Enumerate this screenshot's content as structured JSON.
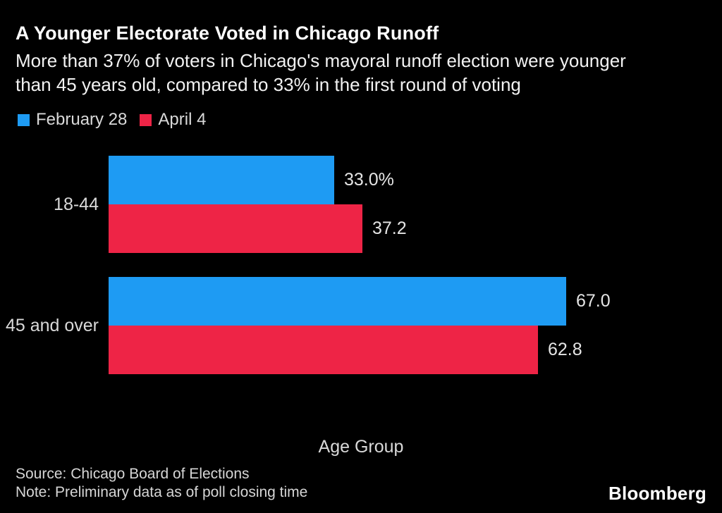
{
  "header": {
    "title": "A Younger Electorate Voted in Chicago Runoff",
    "subtitle_lines": [
      "More than 37% of voters in Chicago's mayoral runoff election were younger",
      "than 45 years old, compared to 33% in the first round of voting"
    ]
  },
  "legend": [
    {
      "label": "February 28",
      "color": "#1E9BF3"
    },
    {
      "label": "April 4",
      "color": "#EE2446"
    }
  ],
  "chart_data": {
    "type": "bar",
    "orientation": "horizontal",
    "title": "A Younger Electorate Voted in Chicago Runoff",
    "categories": [
      "18-44",
      "45 and over"
    ],
    "series": [
      {
        "name": "February 28",
        "color": "#1E9BF3",
        "values": [
          33.0,
          67.0
        ],
        "labels": [
          "33.0%",
          "67.0"
        ]
      },
      {
        "name": "April 4",
        "color": "#EE2446",
        "values": [
          37.2,
          62.8
        ],
        "labels": [
          "37.2",
          "62.8"
        ]
      }
    ],
    "xlabel": "Age Group",
    "ylabel": "",
    "xlim": [
      0,
      70
    ],
    "grid": false,
    "legend_position": "top-left",
    "value_labels": "outside-end"
  },
  "footer": {
    "source": "Source: Chicago Board of Elections",
    "note": "Note: Preliminary data as of poll closing time",
    "brand": "Bloomberg"
  },
  "colors": {
    "background": "#000000",
    "title_text": "#FFFFFF",
    "body_text": "#D9D9D9",
    "blue": "#1E9BF3",
    "red": "#EE2446"
  }
}
